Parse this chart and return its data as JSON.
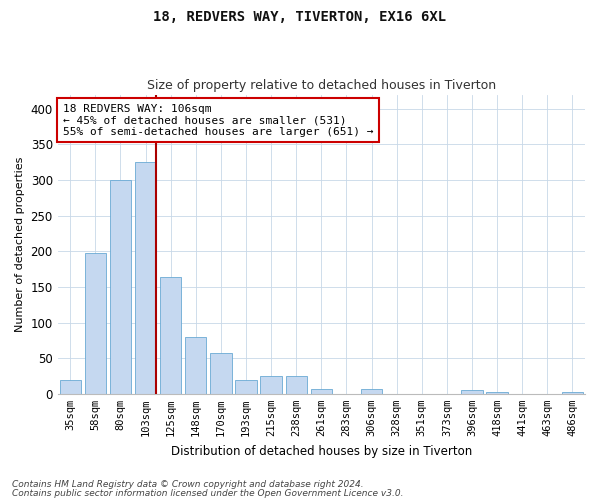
{
  "title1": "18, REDVERS WAY, TIVERTON, EX16 6XL",
  "title2": "Size of property relative to detached houses in Tiverton",
  "xlabel": "Distribution of detached houses by size in Tiverton",
  "ylabel": "Number of detached properties",
  "categories": [
    "35sqm",
    "58sqm",
    "80sqm",
    "103sqm",
    "125sqm",
    "148sqm",
    "170sqm",
    "193sqm",
    "215sqm",
    "238sqm",
    "261sqm",
    "283sqm",
    "306sqm",
    "328sqm",
    "351sqm",
    "373sqm",
    "396sqm",
    "418sqm",
    "441sqm",
    "463sqm",
    "486sqm"
  ],
  "values": [
    20,
    197,
    300,
    325,
    164,
    80,
    57,
    20,
    25,
    25,
    7,
    0,
    7,
    0,
    0,
    0,
    5,
    2,
    0,
    0,
    3
  ],
  "bar_color": "#c5d8f0",
  "bar_edge_color": "#6aaad4",
  "vline_color": "#aa0000",
  "vline_x_idx": 3,
  "annotation_text": "18 REDVERS WAY: 106sqm\n← 45% of detached houses are smaller (531)\n55% of semi-detached houses are larger (651) →",
  "annotation_box_color": "#ffffff",
  "annotation_box_edge": "#cc0000",
  "ylim": [
    0,
    420
  ],
  "yticks": [
    0,
    50,
    100,
    150,
    200,
    250,
    300,
    350,
    400
  ],
  "footer1": "Contains HM Land Registry data © Crown copyright and database right 2024.",
  "footer2": "Contains public sector information licensed under the Open Government Licence v3.0.",
  "background_color": "#ffffff",
  "grid_color": "#c8d8e8",
  "title1_fontsize": 10,
  "title2_fontsize": 9,
  "bar_width": 0.85
}
